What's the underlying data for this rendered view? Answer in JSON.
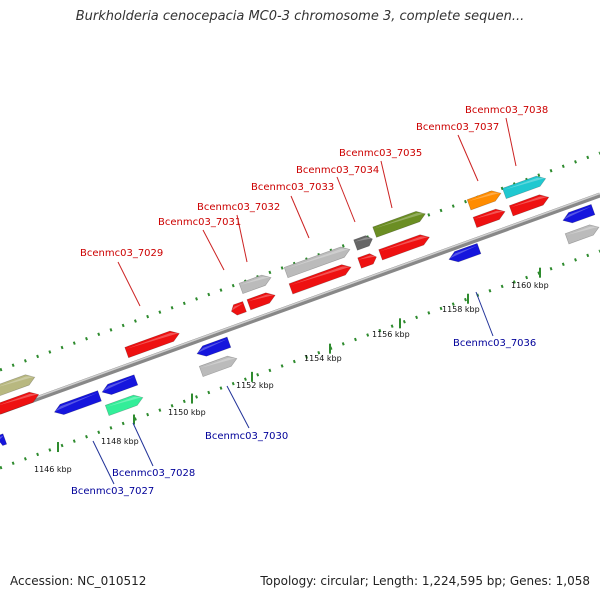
{
  "header": {
    "title": "Burkholderia cenocepacia MC0-3 chromosome 3, complete sequen..."
  },
  "footer": {
    "accession": "Accession: NC_010512",
    "summary": "Topology: circular; Length: 1,224,595 bp; Genes: 1,058"
  },
  "colors": {
    "red": "#ee1111",
    "blue": "#1515dd",
    "gray": "#bbbbbb",
    "darkgray": "#666666",
    "olive": "#6b8e23",
    "orange": "#ff8c00",
    "cyan": "#20c8d0",
    "mint": "#33ee99",
    "khaki": "#b8b880",
    "top_label": "#cc0000",
    "bottom_label": "#000099",
    "dots": "#2e8b2e",
    "backbone": "#888888"
  },
  "ticks": [
    "1146 kbp",
    "1148 kbp",
    "1150 kbp",
    "1152 kbp",
    "1154 kbp",
    "1156 kbp",
    "1158 kbp",
    "1160 kbp"
  ],
  "genes_top": [
    "Bcenmc03_7029",
    "Bcenmc03_7031",
    "Bcenmc03_7032",
    "Bcenmc03_7033",
    "Bcenmc03_7034",
    "Bcenmc03_7035",
    "Bcenmc03_7037",
    "Bcenmc03_7038"
  ],
  "genes_bottom": [
    "Bcenmc03_7027",
    "Bcenmc03_7028",
    "Bcenmc03_7030",
    "Bcenmc03_7036"
  ]
}
